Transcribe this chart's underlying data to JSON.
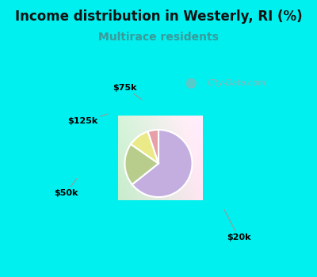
{
  "title": "Income distribution in Westerly, RI (%)",
  "subtitle": "Multirace residents",
  "title_color": "#111111",
  "subtitle_color": "#3a9a9a",
  "background_cyan": "#00EFEF",
  "labels": [
    "$20k",
    "$50k",
    "$125k",
    "$75k"
  ],
  "values": [
    63,
    20,
    10,
    5
  ],
  "colors": [
    "#c4aee0",
    "#b8cc8c",
    "#eaea88",
    "#e8a0a8"
  ],
  "watermark": "City-Data.com",
  "startangle": 90,
  "figsize": [
    4.0,
    3.5
  ],
  "dpi": 100,
  "title_fontsize": 12,
  "subtitle_fontsize": 10
}
